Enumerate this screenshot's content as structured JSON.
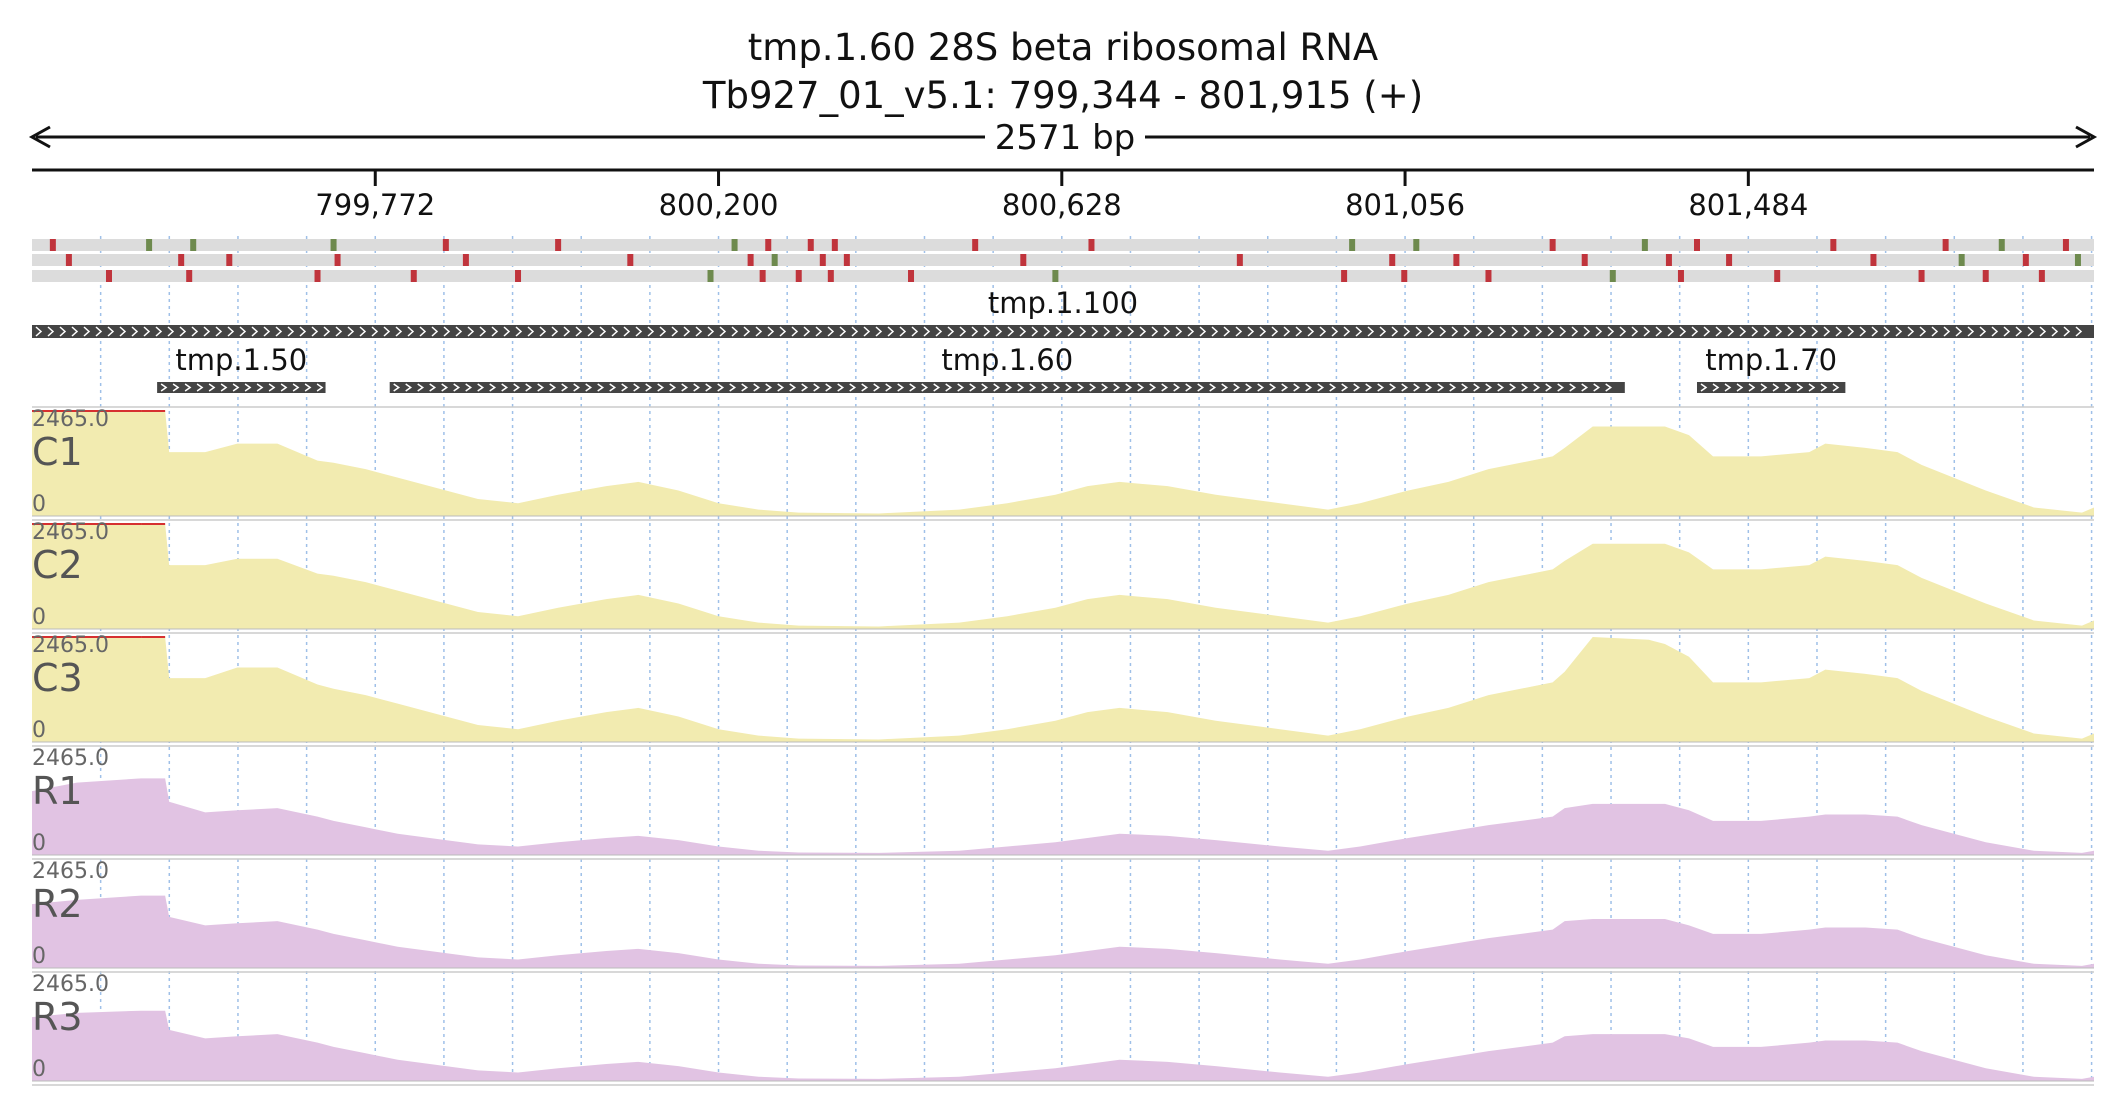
{
  "chart_data": {
    "type": "area",
    "title": "tmp.1.60  28S beta ribosomal RNA",
    "subtitle": "Tb927_01_v5.1: 799,344 - 801,915 (+)",
    "region": {
      "chrom": "Tb927_01_v5.1",
      "start": 799344,
      "end": 801915,
      "strand": "+"
    },
    "length_label": "2571 bp",
    "ticks": [
      {
        "pos": 799772,
        "label": "799,772"
      },
      {
        "pos": 800200,
        "label": "800,200"
      },
      {
        "pos": 800628,
        "label": "800,628"
      },
      {
        "pos": 801056,
        "label": "801,056"
      },
      {
        "pos": 801484,
        "label": "801,484"
      }
    ],
    "genes": [
      {
        "name": "tmp.1.100",
        "start": 799344,
        "end": 801915,
        "row": 0
      },
      {
        "name": "tmp.1.50",
        "start": 799500,
        "end": 799710,
        "row": 1
      },
      {
        "name": "tmp.1.60",
        "start": 799790,
        "end": 801330,
        "row": 1
      },
      {
        "name": "tmp.1.70",
        "start": 801420,
        "end": 801605,
        "row": 1
      }
    ],
    "variants": [
      [
        799370,
        "r"
      ],
      [
        799390,
        "r"
      ],
      [
        799440,
        "r"
      ],
      [
        799490,
        "g"
      ],
      [
        799530,
        "r"
      ],
      [
        799540,
        "r"
      ],
      [
        799545,
        "g"
      ],
      [
        799590,
        "r"
      ],
      [
        799700,
        "r"
      ],
      [
        799720,
        "g"
      ],
      [
        799725,
        "r"
      ],
      [
        799820,
        "r"
      ],
      [
        799860,
        "r"
      ],
      [
        799885,
        "r"
      ],
      [
        799950,
        "r"
      ],
      [
        800000,
        "r"
      ],
      [
        800090,
        "r"
      ],
      [
        800190,
        "g"
      ],
      [
        800220,
        "g"
      ],
      [
        800240,
        "r"
      ],
      [
        800255,
        "r"
      ],
      [
        800262,
        "r"
      ],
      [
        800270,
        "g"
      ],
      [
        800300,
        "r"
      ],
      [
        800315,
        "r"
      ],
      [
        800330,
        "r"
      ],
      [
        800340,
        "r"
      ],
      [
        800345,
        "r"
      ],
      [
        800360,
        "r"
      ],
      [
        800440,
        "r"
      ],
      [
        800520,
        "r"
      ],
      [
        800580,
        "r"
      ],
      [
        800620,
        "g"
      ],
      [
        800665,
        "r"
      ],
      [
        800850,
        "r"
      ],
      [
        800980,
        "r"
      ],
      [
        800990,
        "g"
      ],
      [
        801040,
        "r"
      ],
      [
        801055,
        "r"
      ],
      [
        801070,
        "g"
      ],
      [
        801120,
        "r"
      ],
      [
        801160,
        "r"
      ],
      [
        801240,
        "r"
      ],
      [
        801280,
        "r"
      ],
      [
        801315,
        "g"
      ],
      [
        801355,
        "g"
      ],
      [
        801385,
        "r"
      ],
      [
        801400,
        "r"
      ],
      [
        801420,
        "r"
      ],
      [
        801460,
        "r"
      ],
      [
        801520,
        "r"
      ],
      [
        801590,
        "r"
      ],
      [
        801640,
        "r"
      ],
      [
        801700,
        "r"
      ],
      [
        801730,
        "r"
      ],
      [
        801750,
        "g"
      ],
      [
        801780,
        "r"
      ],
      [
        801800,
        "g"
      ],
      [
        801830,
        "r"
      ],
      [
        801850,
        "r"
      ],
      [
        801880,
        "r"
      ],
      [
        801895,
        "g"
      ]
    ],
    "ymax_label": "2465.0",
    "ymin_label": "0",
    "ylim": [
      0,
      2465
    ],
    "coverage_x": [
      799344,
      799400,
      799480,
      799510,
      799515,
      799560,
      799600,
      799650,
      799700,
      799720,
      799760,
      799800,
      799900,
      799950,
      800000,
      800060,
      800100,
      800150,
      800200,
      800250,
      800300,
      800400,
      800500,
      800560,
      800620,
      800660,
      800700,
      800760,
      800820,
      800900,
      800960,
      801000,
      801060,
      801110,
      801160,
      801240,
      801255,
      801290,
      801360,
      801380,
      801410,
      801440,
      801500,
      801560,
      801580,
      801630,
      801670,
      801700,
      801780,
      801840,
      801900,
      801915
    ],
    "series": [
      {
        "name": "C1",
        "color": "#f2ebb0",
        "values": [
          2465,
          2465,
          2465,
          2465,
          1500,
          1500,
          1700,
          1700,
          1300,
          1250,
          1100,
          900,
          400,
          300,
          500,
          700,
          800,
          600,
          300,
          150,
          80,
          60,
          150,
          300,
          500,
          700,
          800,
          700,
          500,
          300,
          150,
          300,
          600,
          800,
          1100,
          1400,
          1600,
          2100,
          2100,
          2100,
          1900,
          1400,
          1400,
          1500,
          1700,
          1600,
          1500,
          1200,
          600,
          200,
          80,
          200
        ]
      },
      {
        "name": "C2",
        "color": "#f2ebb0",
        "values": [
          2465,
          2465,
          2465,
          2465,
          1500,
          1500,
          1650,
          1650,
          1300,
          1250,
          1100,
          900,
          400,
          300,
          500,
          700,
          800,
          600,
          300,
          150,
          80,
          60,
          150,
          300,
          500,
          700,
          800,
          700,
          500,
          300,
          150,
          300,
          600,
          800,
          1100,
          1400,
          1600,
          2000,
          2000,
          2000,
          1800,
          1400,
          1400,
          1500,
          1700,
          1600,
          1500,
          1200,
          600,
          200,
          80,
          200
        ]
      },
      {
        "name": "C3",
        "color": "#f2ebb0",
        "values": [
          2465,
          2465,
          2465,
          2465,
          1500,
          1500,
          1750,
          1750,
          1350,
          1250,
          1100,
          900,
          400,
          300,
          500,
          700,
          800,
          600,
          300,
          150,
          80,
          60,
          150,
          300,
          500,
          700,
          800,
          700,
          500,
          300,
          150,
          300,
          600,
          800,
          1100,
          1400,
          1650,
          2465,
          2400,
          2300,
          2000,
          1400,
          1400,
          1500,
          1700,
          1600,
          1500,
          1200,
          600,
          200,
          80,
          200
        ]
      },
      {
        "name": "R1",
        "color": "#e1c3e3",
        "values": [
          1500,
          1700,
          1800,
          1800,
          1250,
          1000,
          1050,
          1100,
          900,
          800,
          650,
          500,
          250,
          200,
          300,
          400,
          450,
          350,
          200,
          100,
          60,
          50,
          100,
          200,
          300,
          400,
          500,
          450,
          350,
          200,
          100,
          200,
          400,
          550,
          700,
          900,
          1100,
          1200,
          1200,
          1200,
          1050,
          800,
          800,
          900,
          950,
          950,
          900,
          700,
          300,
          100,
          50,
          100
        ]
      },
      {
        "name": "R2",
        "color": "#e1c3e3",
        "values": [
          1500,
          1600,
          1700,
          1700,
          1200,
          1000,
          1050,
          1100,
          900,
          800,
          650,
          500,
          250,
          200,
          300,
          400,
          450,
          350,
          200,
          100,
          60,
          50,
          100,
          200,
          300,
          400,
          500,
          450,
          350,
          200,
          100,
          200,
          400,
          550,
          700,
          900,
          1100,
          1150,
          1150,
          1150,
          1000,
          800,
          800,
          900,
          950,
          950,
          900,
          700,
          300,
          100,
          50,
          100
        ]
      },
      {
        "name": "R3",
        "color": "#e1c3e3",
        "values": [
          1500,
          1600,
          1650,
          1650,
          1200,
          1000,
          1050,
          1100,
          900,
          800,
          650,
          500,
          250,
          200,
          300,
          400,
          450,
          350,
          200,
          100,
          60,
          50,
          100,
          200,
          300,
          400,
          500,
          450,
          350,
          200,
          100,
          200,
          400,
          550,
          700,
          900,
          1050,
          1100,
          1100,
          1100,
          1000,
          800,
          800,
          900,
          950,
          950,
          900,
          700,
          300,
          100,
          50,
          100
        ]
      }
    ]
  }
}
